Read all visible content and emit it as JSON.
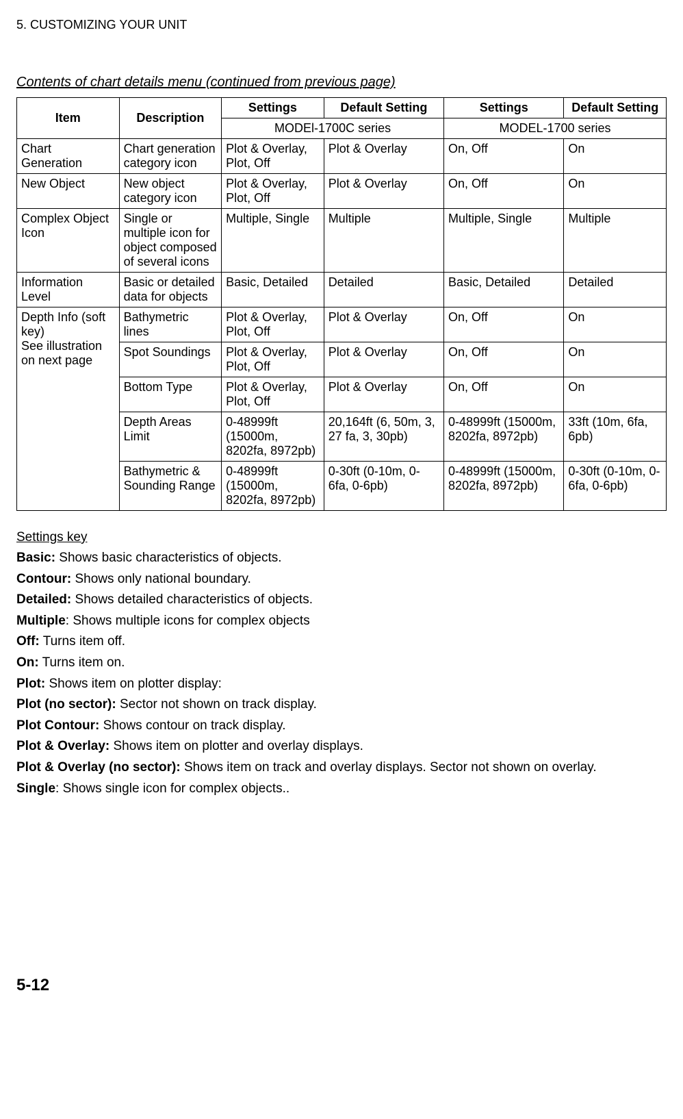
{
  "chapter": "5. CUSTOMIZING YOUR UNIT",
  "subtitle": "Contents of chart details menu (continued from previous page)",
  "headers": {
    "item": "Item",
    "description": "Description",
    "settings": "Settings",
    "default_setting": "Default Setting",
    "series_a": "MODEl-1700C series",
    "series_b": "MODEL-1700 series"
  },
  "rows": [
    {
      "item": "Chart Generation",
      "desc": "Chart generation category icon",
      "set_a": "Plot & Overlay, Plot, Off",
      "def_a": "Plot & Overlay",
      "set_b": "On, Off",
      "def_b": "On"
    },
    {
      "item": "New Object",
      "desc": "New object category icon",
      "set_a": "Plot & Overlay, Plot, Off",
      "def_a": "Plot & Overlay",
      "set_b": "On, Off",
      "def_b": "On"
    },
    {
      "item": "Complex Object Icon",
      "desc": "Single or multiple icon for object composed of several icons",
      "set_a": "Multiple, Single",
      "def_a": "Multiple",
      "set_b": "Multiple, Single",
      "def_b": "Multiple"
    },
    {
      "item": "Information Level",
      "desc": "Basic or detailed data for objects",
      "set_a": "Basic, Detailed",
      "def_a": "Detailed",
      "set_b": "Basic, Detailed",
      "def_b": "Detailed"
    }
  ],
  "depth_info_item": "Depth Info (soft key)\nSee illustration on next page",
  "depth_rows": [
    {
      "desc": "Bathymetric lines",
      "set_a": "Plot & Overlay, Plot, Off",
      "def_a": "Plot & Overlay",
      "set_b": "On, Off",
      "def_b": "On"
    },
    {
      "desc": "Spot Soundings",
      "set_a": "Plot & Overlay, Plot, Off",
      "def_a": "Plot & Overlay",
      "set_b": "On, Off",
      "def_b": "On"
    },
    {
      "desc": "Bottom Type",
      "set_a": "Plot & Overlay, Plot, Off",
      "def_a": "Plot & Overlay",
      "set_b": "On, Off",
      "def_b": "On"
    },
    {
      "desc": "Depth Areas Limit",
      "set_a": "0-48999ft (15000m, 8202fa, 8972pb)",
      "def_a": "20,164ft (6, 50m, 3, 27 fa, 3, 30pb)",
      "set_b": "0-48999ft (15000m, 8202fa, 8972pb)",
      "def_b": "33ft (10m, 6fa, 6pb)"
    },
    {
      "desc": "Bathymetric & Sounding Range",
      "set_a": "0-48999ft (15000m, 8202fa, 8972pb)",
      "def_a": "0-30ft (0-10m, 0-6fa, 0-6pb)",
      "set_b": "0-48999ft (15000m, 8202fa, 8972pb)",
      "def_b": "0-30ft (0-10m, 0-6fa, 0-6pb)"
    }
  ],
  "settings_key_title": "Settings key",
  "keys": [
    {
      "term": "Basic:",
      "def": " Shows basic characteristics of objects."
    },
    {
      "term": "Contour:",
      "def": " Shows only national boundary."
    },
    {
      "term": "Detailed:",
      "def": " Shows detailed characteristics of objects."
    },
    {
      "term": "Multiple",
      "def": ": Shows multiple icons for complex objects"
    },
    {
      "term": "Off:",
      "def": " Turns item off."
    },
    {
      "term": "On:",
      "def": " Turns item on."
    },
    {
      "term": "Plot:",
      "def": " Shows item on plotter display:"
    },
    {
      "term": "Plot (no sector):",
      "def": " Sector not shown on track display."
    },
    {
      "term": "Plot Contour:",
      "def": " Shows contour on track display."
    },
    {
      "term": "Plot & Overlay:",
      "def": " Shows item on plotter and overlay displays."
    },
    {
      "term": "Plot & Overlay (no sector):",
      "def": " Shows item on track and overlay displays. Sector not shown on overlay."
    },
    {
      "term": "Single",
      "def": ": Shows single icon for complex objects.."
    }
  ],
  "page_number": "5-12"
}
